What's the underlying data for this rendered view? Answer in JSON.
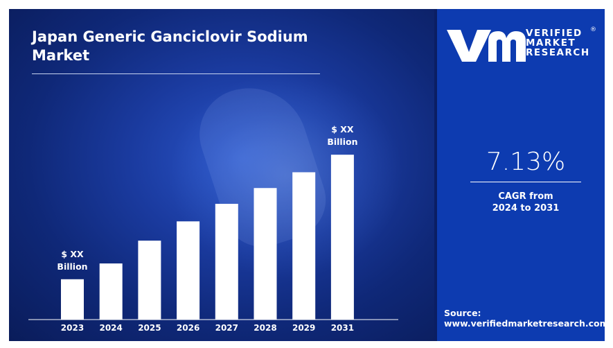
{
  "title": "Japan Generic Ganciclovir Sodium Market",
  "brand": {
    "line1": "VERIFIED",
    "line2": "MARKET",
    "line3": "RESEARCH",
    "registered": "®"
  },
  "cagr": {
    "value": "7.13%",
    "label_line1": "CAGR from",
    "label_line2": "2024 to 2031"
  },
  "source": {
    "label": "Source:",
    "url": "www.verifiedmarketresearch.com"
  },
  "colors": {
    "bar": "#ffffff",
    "left_panel": "#1a3a9e",
    "right_panel": "#0d3bb0",
    "text": "#ffffff"
  },
  "chart_data": {
    "type": "bar",
    "categories": [
      "2023",
      "2024",
      "2025",
      "2026",
      "2027",
      "2028",
      "2029",
      "2031"
    ],
    "values": [
      23,
      32,
      45,
      56,
      66,
      75,
      84,
      94
    ],
    "value_unit": "relative (values not printed)",
    "annotations": [
      {
        "category": "2023",
        "line1": "$ XX",
        "line2": "Billion"
      },
      {
        "category": "2031",
        "line1": "$ XX",
        "line2": "Billion"
      }
    ],
    "ylim": [
      0,
      100
    ],
    "grid": false,
    "legend": "none"
  }
}
